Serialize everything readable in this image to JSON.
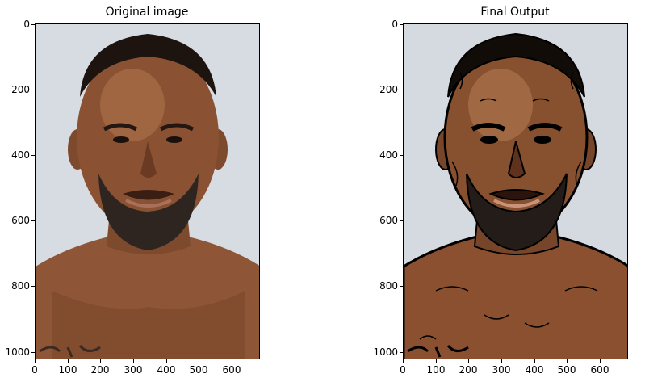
{
  "figure": {
    "panels": [
      {
        "title": "Original image",
        "style": "photo",
        "y_ticks": [
          "0",
          "200",
          "400",
          "600",
          "800",
          "1000"
        ],
        "x_ticks": [
          "0",
          "100",
          "200",
          "300",
          "400",
          "500",
          "600"
        ]
      },
      {
        "title": "Final Output",
        "style": "cartoon",
        "y_ticks": [
          "0",
          "200",
          "400",
          "600",
          "800",
          "1000"
        ],
        "x_ticks": [
          "0",
          "100",
          "200",
          "300",
          "400",
          "500",
          "600"
        ]
      }
    ],
    "colors": {
      "background": "#d5d9e0",
      "skin": "#8a5233",
      "skin_light": "#b57a52",
      "skin_dark": "#5a2f1a",
      "hair": "#1d1410",
      "beard": "#2e2521",
      "ink": "#000000"
    }
  }
}
